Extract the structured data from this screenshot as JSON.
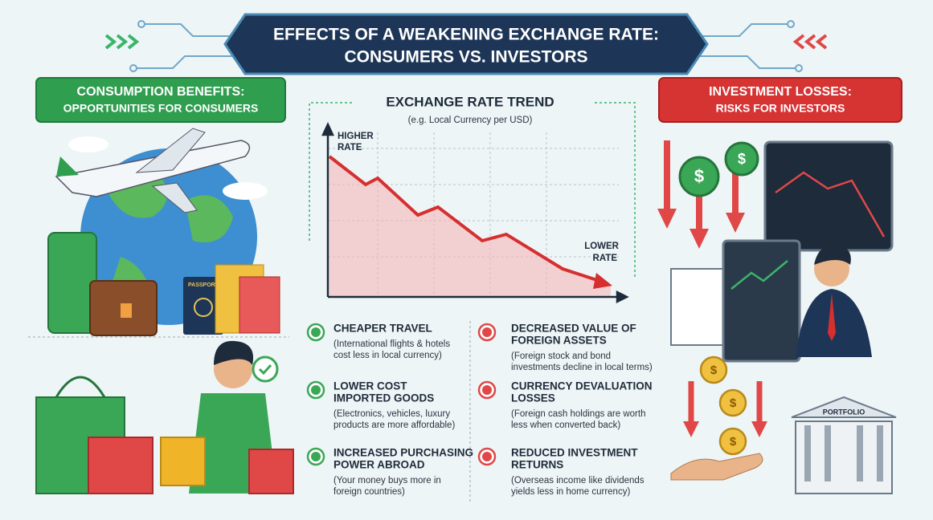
{
  "header": {
    "title_lines": [
      "EFFECTS OF A WEAKENING EXCHANGE RATE:",
      "CONSUMERS VS. INVESTORS"
    ]
  },
  "left_panel": {
    "title_lines": [
      "CONSUMPTION BENEFITS:",
      "OPPORTUNITIES FOR CONSUMERS"
    ],
    "passport_label": "PASSPORT"
  },
  "right_panel": {
    "title_lines": [
      "INVESTMENT LOSSES:",
      "RISKS FOR INVESTORS"
    ],
    "portfolio_label": "PORTFOLIO"
  },
  "trend": {
    "title": "EXCHANGE RATE TREND",
    "subtitle": "(e.g. Local Currency per USD)",
    "higher_label": [
      "HIGHER",
      "RATE"
    ],
    "lower_label": [
      "LOWER",
      "RATE"
    ]
  },
  "currency_symbol": "$",
  "benefits": [
    {
      "title": [
        "CHEAPER TRAVEL"
      ],
      "description": [
        "(International flights & hotels",
        "cost less in local currency)"
      ]
    },
    {
      "title": [
        "LOWER COST",
        "IMPORTED GOODS"
      ],
      "description": [
        "(Electronics, vehicles, luxury",
        "products are more affordable)"
      ]
    },
    {
      "title": [
        "INCREASED PURCHASING",
        "POWER ABROAD"
      ],
      "description": [
        "(Your money buys more in",
        "foreign countries)"
      ]
    }
  ],
  "losses": [
    {
      "title": [
        "DECREASED VALUE OF",
        "FOREIGN ASSETS"
      ],
      "description": [
        "(Foreign stock and bond",
        "investments decline in local terms)"
      ]
    },
    {
      "title": [
        "CURRENCY DEVALUATION",
        "LOSSES"
      ],
      "description": [
        "(Foreign cash holdings are worth",
        "less when converted back)"
      ]
    },
    {
      "title": [
        "REDUCED INVESTMENT",
        "RETURNS"
      ],
      "description": [
        "(Overseas income like dividends",
        "yields less in home currency)"
      ]
    }
  ]
}
